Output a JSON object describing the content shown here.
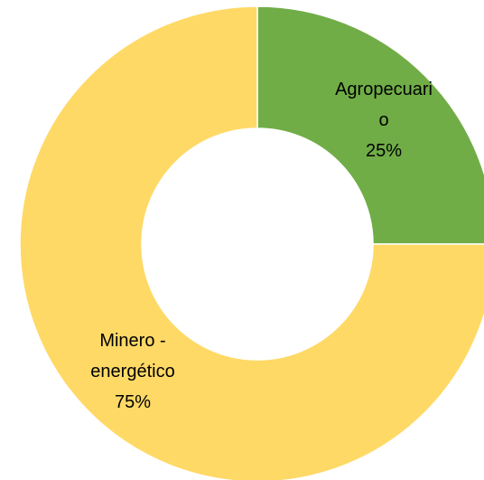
{
  "chart_data": {
    "type": "donut",
    "categories": [
      "Agropecuario",
      "Minero - energético"
    ],
    "values": [
      25,
      75
    ],
    "value_labels": [
      "25%",
      "75%"
    ],
    "colors": [
      "#70ad47",
      "#ffd966"
    ]
  }
}
